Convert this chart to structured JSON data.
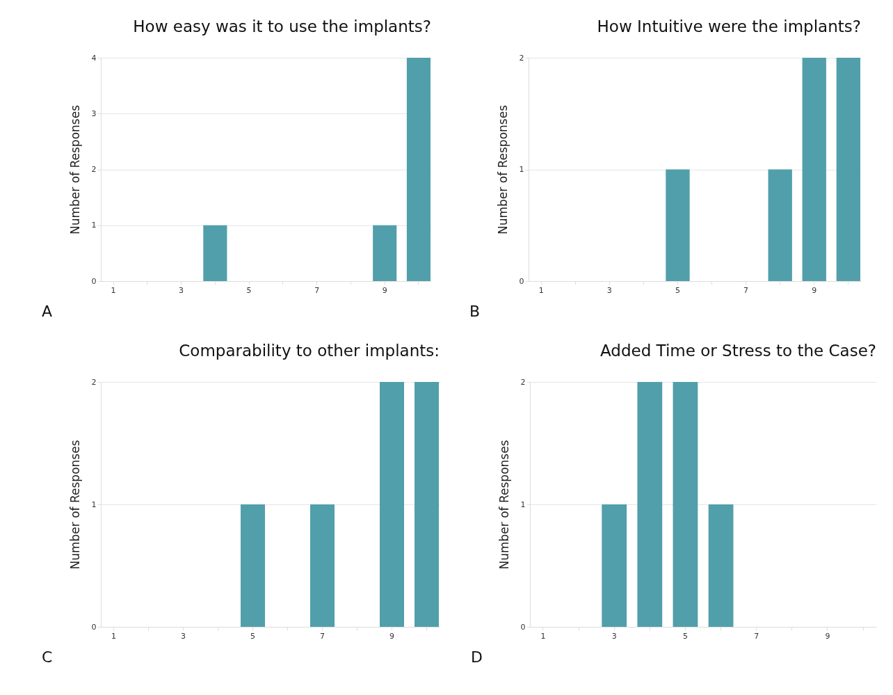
{
  "chart_data": [
    {
      "type": "bar",
      "title": "How easy was it to use the implants?",
      "ylabel": "Number of Responses",
      "categories": [
        "1",
        null,
        "3",
        null,
        "5",
        null,
        "7",
        null,
        "9",
        null
      ],
      "values": [
        0,
        0,
        0,
        1,
        0,
        0,
        0,
        0,
        1,
        4
      ],
      "color": "#519fab",
      "ylim": [
        0,
        4
      ],
      "yticks": [
        0,
        1,
        2,
        3,
        4
      ],
      "grid": "y",
      "annotations": [
        "A"
      ]
    },
    {
      "type": "bar",
      "title": "How Intuitive were the implants?",
      "ylabel": "Number of Responses",
      "categories": [
        "1",
        null,
        "3",
        null,
        "5",
        null,
        "7",
        null,
        "9",
        null
      ],
      "values": [
        0,
        0,
        0,
        0,
        1,
        0,
        0,
        1,
        2,
        2
      ],
      "color": "#519fab",
      "ylim": [
        0,
        2
      ],
      "yticks": [
        0,
        1,
        2
      ],
      "grid": "y",
      "annotations": [
        "B"
      ]
    },
    {
      "type": "bar",
      "title": "Comparability to other implants:",
      "ylabel": "Number of Responses",
      "categories": [
        "1",
        null,
        "3",
        null,
        "5",
        null,
        "7",
        null,
        "9",
        null
      ],
      "values": [
        0,
        0,
        0,
        0,
        1,
        0,
        1,
        0,
        2,
        2
      ],
      "color": "#519fab",
      "ylim": [
        0,
        2
      ],
      "yticks": [
        0,
        1,
        2
      ],
      "grid": "y",
      "annotations": [
        "C"
      ]
    },
    {
      "type": "bar",
      "title": "Added Time or Stress to the Case?",
      "ylabel": "Number of Responses",
      "categories": [
        "1",
        null,
        "3",
        null,
        "5",
        null,
        "7",
        null,
        "9",
        null
      ],
      "values": [
        0,
        0,
        1,
        2,
        2,
        1,
        0,
        0,
        0,
        0
      ],
      "color": "#519fab",
      "ylim": [
        0,
        2
      ],
      "yticks": [
        0,
        1,
        2
      ],
      "grid": "y",
      "annotations": [
        "D"
      ]
    }
  ]
}
